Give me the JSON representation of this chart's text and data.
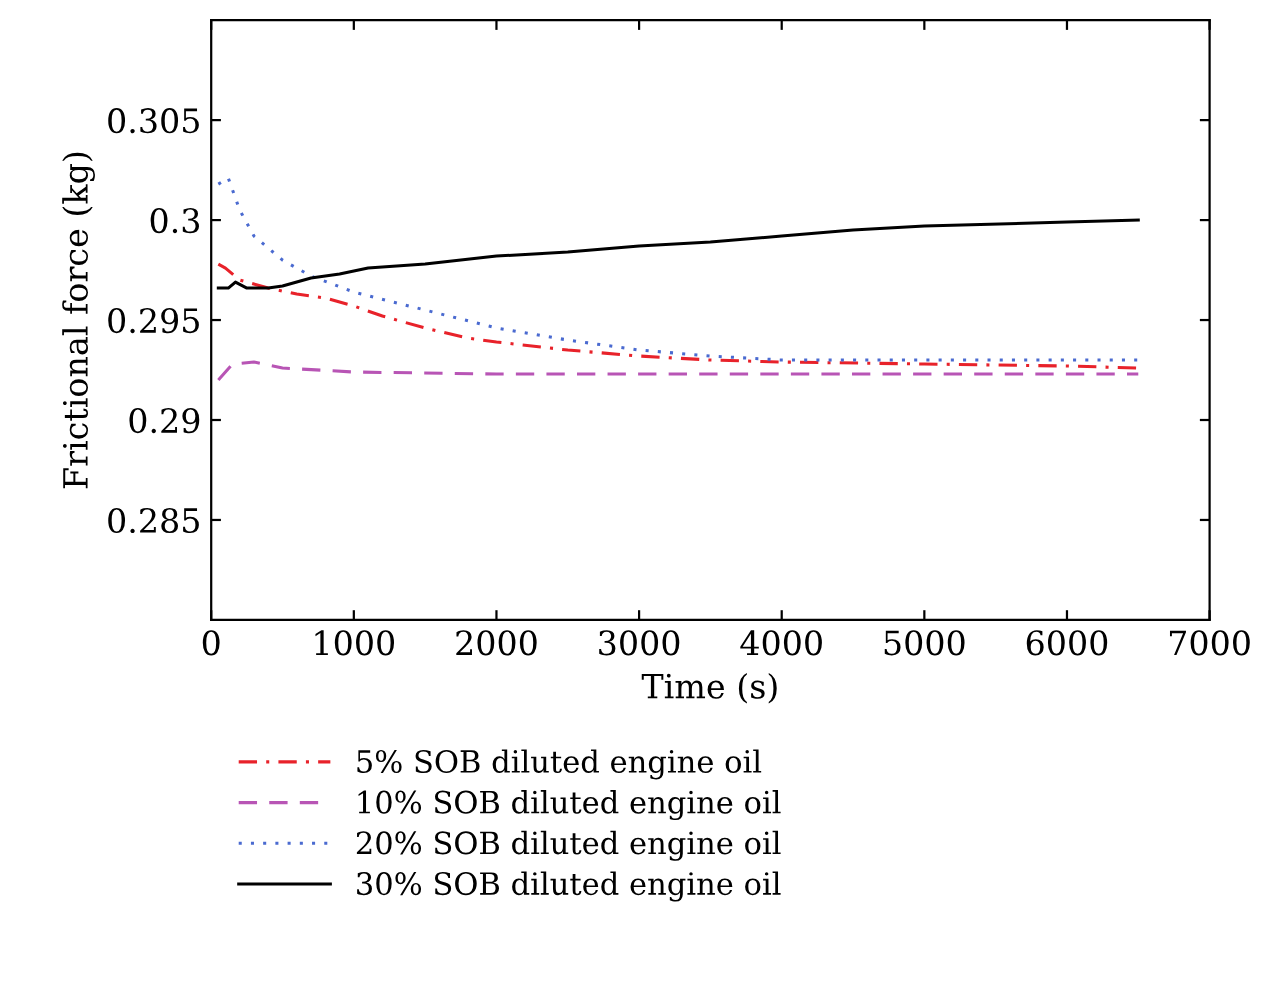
{
  "chart_data": {
    "type": "line",
    "xlabel": "Time (s)",
    "ylabel": "Frictional force (kg)",
    "xlim": [
      0,
      7000
    ],
    "xticks": [
      0,
      1000,
      2000,
      3000,
      4000,
      5000,
      6000,
      7000
    ],
    "ylim": [
      0.28,
      0.31
    ],
    "yticks": [
      {
        "value": 0.285,
        "label": "0.285"
      },
      {
        "value": 0.29,
        "label": "0.29"
      },
      {
        "value": 0.295,
        "label": "0.295"
      },
      {
        "value": 0.3,
        "label": "0.3"
      },
      {
        "value": 0.305,
        "label": "0.305"
      }
    ],
    "grid": false,
    "legend": "bottom",
    "series": [
      {
        "name": "5% SOB diluted engine oil",
        "color": "#e8222a",
        "line_style": "dashdot",
        "x": [
          50,
          100,
          200,
          400,
          600,
          800,
          1000,
          1200,
          1500,
          1800,
          2000,
          2500,
          3000,
          3500,
          4000,
          5000,
          6000,
          6500
        ],
        "values": [
          0.2978,
          0.2976,
          0.297,
          0.2966,
          0.2963,
          0.2961,
          0.2957,
          0.2952,
          0.2946,
          0.2941,
          0.2939,
          0.2935,
          0.2932,
          0.293,
          0.2929,
          0.2928,
          0.2927,
          0.2926
        ]
      },
      {
        "name": "10% SOB diluted engine oil",
        "color": "#b855b5",
        "line_style": "dashed",
        "x": [
          50,
          150,
          300,
          500,
          1000,
          2000,
          4000,
          6500
        ],
        "values": [
          0.292,
          0.2928,
          0.2929,
          0.2926,
          0.2924,
          0.2923,
          0.2923,
          0.2923
        ]
      },
      {
        "name": "20% SOB diluted engine oil",
        "color": "#4a6ad0",
        "line_style": "dotted",
        "x": [
          50,
          120,
          200,
          300,
          500,
          700,
          1000,
          1500,
          2000,
          2500,
          3000,
          3500,
          4000,
          5000,
          6500
        ],
        "values": [
          0.3018,
          0.3021,
          0.3005,
          0.2992,
          0.298,
          0.2972,
          0.2964,
          0.2955,
          0.2946,
          0.294,
          0.2935,
          0.2932,
          0.293,
          0.293,
          0.293
        ]
      },
      {
        "name": "30% SOB diluted engine oil",
        "color": "#000000",
        "line_style": "solid",
        "x": [
          50,
          120,
          170,
          250,
          400,
          500,
          700,
          900,
          1100,
          1500,
          2000,
          2500,
          3000,
          3500,
          4000,
          4500,
          5000,
          6000,
          6500
        ],
        "values": [
          0.2966,
          0.2966,
          0.2969,
          0.2966,
          0.2966,
          0.2967,
          0.2971,
          0.2973,
          0.2976,
          0.2978,
          0.2982,
          0.2984,
          0.2987,
          0.2989,
          0.2992,
          0.2995,
          0.2997,
          0.2999,
          0.3
        ]
      }
    ]
  }
}
